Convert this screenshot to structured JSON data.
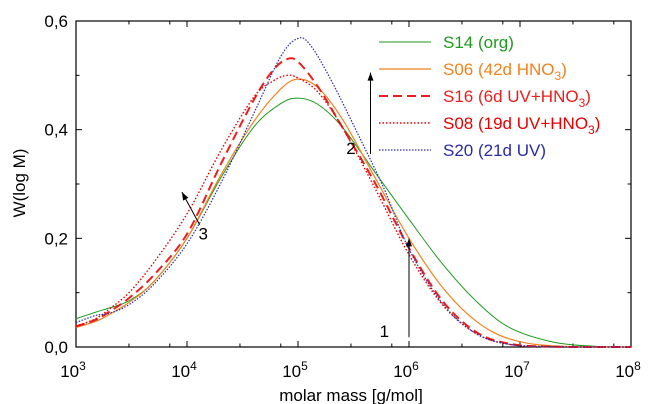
{
  "chart_data": {
    "type": "line",
    "xlabel": "molar mass [g/mol]",
    "ylabel": "W(log M)",
    "x_scale": "log",
    "xlim": [
      1000,
      100000000
    ],
    "ylim": [
      0,
      0.6
    ],
    "x_ticks": [
      {
        "base": "10",
        "exp": "3"
      },
      {
        "base": "10",
        "exp": "4"
      },
      {
        "base": "10",
        "exp": "5"
      },
      {
        "base": "10",
        "exp": "6"
      },
      {
        "base": "10",
        "exp": "7"
      },
      {
        "base": "10",
        "exp": "8"
      }
    ],
    "y_ticks": [
      "0,0",
      "0,2",
      "0,4",
      "0,6"
    ],
    "grid": false,
    "legend_position": "top-right",
    "series": [
      {
        "name": "S14 (org)",
        "legend": {
          "text": "S14 (org)",
          "sub": "",
          "tail": ""
        },
        "color": "#1e9a1e",
        "dash": "solid",
        "width": 1.0,
        "points": [
          [
            1000,
            0.052
          ],
          [
            1500,
            0.064
          ],
          [
            2000,
            0.072
          ],
          [
            3000,
            0.085
          ],
          [
            5000,
            0.12
          ],
          [
            10000,
            0.2
          ],
          [
            20000,
            0.31
          ],
          [
            40000,
            0.405
          ],
          [
            70000,
            0.448
          ],
          [
            100000,
            0.458
          ],
          [
            150000,
            0.447
          ],
          [
            250000,
            0.405
          ],
          [
            500000,
            0.32
          ],
          [
            1000000,
            0.235
          ],
          [
            2000000,
            0.153
          ],
          [
            4000000,
            0.085
          ],
          [
            8000000,
            0.036
          ],
          [
            20000000,
            0.009
          ],
          [
            50000000,
            0.001
          ],
          [
            100000000,
            0.0
          ]
        ]
      },
      {
        "name": "S06 (42d HNO3)",
        "legend": {
          "text": "S06 (42d HNO",
          "sub": "3",
          "tail": ")"
        },
        "color": "#f0821e",
        "dash": "solid",
        "width": 1.2,
        "points": [
          [
            1000,
            0.036
          ],
          [
            1500,
            0.047
          ],
          [
            2000,
            0.06
          ],
          [
            3000,
            0.082
          ],
          [
            5000,
            0.12
          ],
          [
            10000,
            0.2
          ],
          [
            20000,
            0.315
          ],
          [
            40000,
            0.415
          ],
          [
            70000,
            0.475
          ],
          [
            100000,
            0.493
          ],
          [
            150000,
            0.478
          ],
          [
            250000,
            0.42
          ],
          [
            500000,
            0.31
          ],
          [
            1000000,
            0.2
          ],
          [
            2000000,
            0.11
          ],
          [
            4000000,
            0.048
          ],
          [
            8000000,
            0.015
          ],
          [
            20000000,
            0.002
          ],
          [
            100000000,
            0.0
          ]
        ]
      },
      {
        "name": "S16 (6d UV+HNO3)",
        "legend": {
          "text": "S16 (6d UV+HNO",
          "sub": "3",
          "tail": ")"
        },
        "color": "#ee1c1c",
        "dash": "9 5",
        "width": 2.0,
        "points": [
          [
            1000,
            0.038
          ],
          [
            1500,
            0.05
          ],
          [
            2000,
            0.065
          ],
          [
            3000,
            0.09
          ],
          [
            5000,
            0.132
          ],
          [
            10000,
            0.208
          ],
          [
            20000,
            0.335
          ],
          [
            40000,
            0.455
          ],
          [
            60000,
            0.51
          ],
          [
            80000,
            0.53
          ],
          [
            100000,
            0.525
          ],
          [
            150000,
            0.48
          ],
          [
            250000,
            0.405
          ],
          [
            500000,
            0.3
          ],
          [
            1000000,
            0.182
          ],
          [
            2000000,
            0.085
          ],
          [
            4000000,
            0.028
          ],
          [
            8000000,
            0.006
          ],
          [
            20000000,
            0.0005
          ],
          [
            100000000,
            0.0
          ]
        ]
      },
      {
        "name": "S08 (19d UV+HNO3)",
        "legend": {
          "text": "S08 (19d UV+HNO",
          "sub": "3",
          "tail": ")"
        },
        "color": "#e60000",
        "dash": "1.5 2",
        "width": 1.4,
        "points": [
          [
            1000,
            0.038
          ],
          [
            1500,
            0.052
          ],
          [
            2000,
            0.07
          ],
          [
            3000,
            0.1
          ],
          [
            5000,
            0.155
          ],
          [
            10000,
            0.245
          ],
          [
            20000,
            0.36
          ],
          [
            40000,
            0.46
          ],
          [
            60000,
            0.49
          ],
          [
            80000,
            0.5
          ],
          [
            100000,
            0.495
          ],
          [
            150000,
            0.47
          ],
          [
            250000,
            0.405
          ],
          [
            500000,
            0.29
          ],
          [
            1000000,
            0.17
          ],
          [
            2000000,
            0.078
          ],
          [
            4000000,
            0.025
          ],
          [
            8000000,
            0.005
          ],
          [
            20000000,
            0.0005
          ],
          [
            100000000,
            0.0
          ]
        ]
      },
      {
        "name": "S20 (21d UV)",
        "legend": {
          "text": "S20 (21d UV)",
          "sub": "",
          "tail": ""
        },
        "color": "#2a2aa8",
        "dash": "1.5 1.5",
        "width": 1.2,
        "points": [
          [
            1000,
            0.045
          ],
          [
            1500,
            0.058
          ],
          [
            2000,
            0.062
          ],
          [
            3000,
            0.078
          ],
          [
            5000,
            0.115
          ],
          [
            10000,
            0.19
          ],
          [
            20000,
            0.3
          ],
          [
            40000,
            0.43
          ],
          [
            70000,
            0.535
          ],
          [
            100000,
            0.568
          ],
          [
            130000,
            0.555
          ],
          [
            200000,
            0.49
          ],
          [
            350000,
            0.39
          ],
          [
            600000,
            0.29
          ],
          [
            1000000,
            0.18
          ],
          [
            2000000,
            0.08
          ],
          [
            4000000,
            0.025
          ],
          [
            8000000,
            0.005
          ],
          [
            20000000,
            0.0005
          ],
          [
            100000000,
            0.0
          ]
        ]
      }
    ],
    "annotations": [
      {
        "label": "1",
        "text_at": [
          600000,
          0.018
        ],
        "arrow_from": [
          1000000,
          0.018
        ],
        "arrow_to": [
          1000000,
          0.2
        ]
      },
      {
        "label": "2",
        "text_at": [
          300000,
          0.355
        ],
        "arrow_from": [
          450000,
          0.355
        ],
        "arrow_to": [
          450000,
          0.505
        ]
      },
      {
        "label": "3",
        "text_at": [
          14000,
          0.198
        ],
        "arrow_from": [
          13000,
          0.225
        ],
        "arrow_to": [
          9000,
          0.285
        ]
      }
    ]
  }
}
